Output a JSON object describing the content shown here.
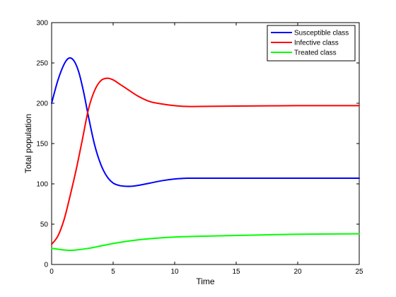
{
  "chart_data": {
    "type": "line",
    "title": "",
    "xlabel": "Time",
    "ylabel": "Total population",
    "xlim": [
      0,
      25
    ],
    "ylim": [
      0,
      300
    ],
    "xticks": [
      0,
      5,
      10,
      15,
      20,
      25
    ],
    "yticks": [
      0,
      50,
      100,
      150,
      200,
      250,
      300
    ],
    "grid": false,
    "legend_position": "top-right",
    "series": [
      {
        "name": "Susceptible class",
        "color": "#0000ff",
        "x": [
          0,
          0.5,
          1,
          1.4,
          1.8,
          2.2,
          2.6,
          3,
          3.5,
          4,
          4.5,
          5,
          5.5,
          6,
          6.5,
          7,
          8,
          9,
          10,
          11,
          12,
          15,
          20,
          25
        ],
        "y": [
          200,
          228,
          248,
          256,
          253,
          239,
          214,
          183,
          148,
          124,
          109,
          101,
          98,
          97,
          97,
          98,
          101,
          104,
          106,
          107,
          107,
          107,
          107,
          107
        ]
      },
      {
        "name": "Infective class",
        "color": "#ff0000",
        "x": [
          0,
          0.5,
          1,
          1.5,
          2,
          2.5,
          3,
          3.5,
          4,
          4.5,
          5,
          5.5,
          6,
          7,
          8,
          9,
          10,
          11,
          12,
          15,
          20,
          25
        ],
        "y": [
          25,
          35,
          55,
          85,
          118,
          155,
          193,
          216,
          228,
          231,
          229,
          224,
          219,
          209,
          202,
          199,
          197,
          196,
          196,
          196.5,
          197,
          197
        ]
      },
      {
        "name": "Treated class",
        "color": "#00ff00",
        "x": [
          0,
          0.5,
          1,
          1.5,
          2,
          3,
          4,
          5,
          6,
          7,
          8,
          10,
          12,
          15,
          20,
          25
        ],
        "y": [
          20,
          19,
          18,
          17.5,
          18,
          20,
          23,
          26,
          28.5,
          30.5,
          32,
          34,
          35,
          36,
          37.5,
          38
        ]
      }
    ]
  }
}
